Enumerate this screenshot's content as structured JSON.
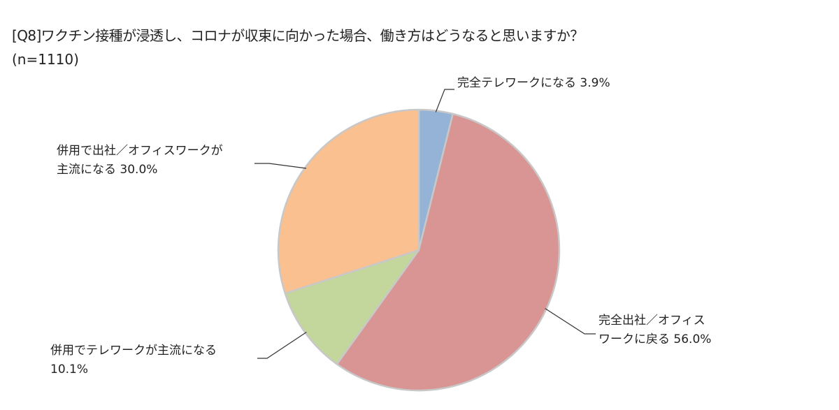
{
  "chart_data": {
    "type": "pie",
    "title": "[Q8]ワクチン接種が浸透し、コロナが収束に向かった場合、働き方はどうなると思いますか？",
    "subtitle": "(n=1110)",
    "start_angle_deg": 0,
    "direction": "clockwise",
    "slices": [
      {
        "key": "full-telework",
        "label_lines": [
          "完全テレワークになる 3.9%"
        ],
        "value": 3.9,
        "color": "#95b3d7"
      },
      {
        "key": "full-office",
        "label_lines": [
          "完全出社／オフィス",
          "ワークに戻る 56.0%"
        ],
        "value": 56.0,
        "color": "#d99594"
      },
      {
        "key": "telework-main",
        "label_lines": [
          "併用でテレワークが主流になる",
          "10.1%"
        ],
        "value": 10.1,
        "color": "#c3d69b"
      },
      {
        "key": "office-main",
        "label_lines": [
          "併用で出社／オフィスワークが",
          "主流になる 30.0%"
        ],
        "value": 30.0,
        "color": "#fac090"
      }
    ]
  }
}
